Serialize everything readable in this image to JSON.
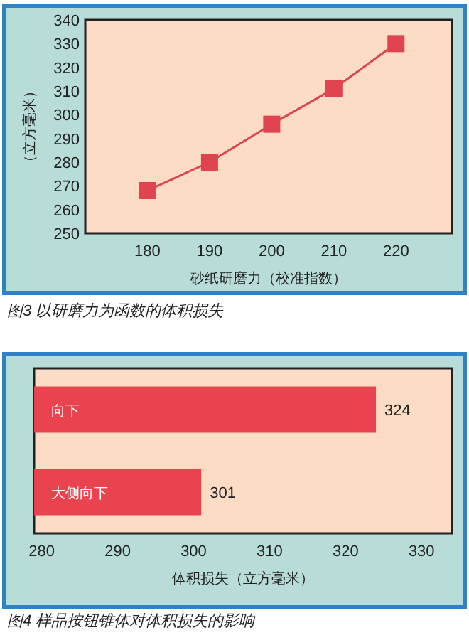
{
  "chart_data": [
    {
      "type": "line",
      "title": "图3 以研磨力为函数的体积损失",
      "xlabel": "砂纸研磨力（校准指数）",
      "ylabel": "（立方毫米）",
      "x": [
        180,
        190,
        200,
        210,
        220
      ],
      "series": [
        {
          "color": "#e04450",
          "values": [
            268,
            280,
            296,
            311,
            330
          ]
        }
      ],
      "xlim": [
        170,
        229
      ],
      "xticks": [
        180,
        190,
        200,
        210,
        220
      ],
      "ylim": [
        250,
        340
      ],
      "yticks": [
        250,
        260,
        270,
        280,
        290,
        300,
        310,
        320,
        330,
        340
      ],
      "marker": "square",
      "line_style": "solid"
    },
    {
      "type": "bar",
      "orientation": "horizontal",
      "title": "图4 样品按钮锥体对体积损失的影响",
      "xlabel": "体积损失（立方毫米）",
      "categories": [
        "向下",
        "大侧向下"
      ],
      "values": [
        324,
        301
      ],
      "color": "#e8434f",
      "data_labels": true,
      "xlim": [
        279,
        334
      ],
      "xticks": [
        280,
        290,
        300,
        310,
        320,
        330
      ]
    }
  ]
}
